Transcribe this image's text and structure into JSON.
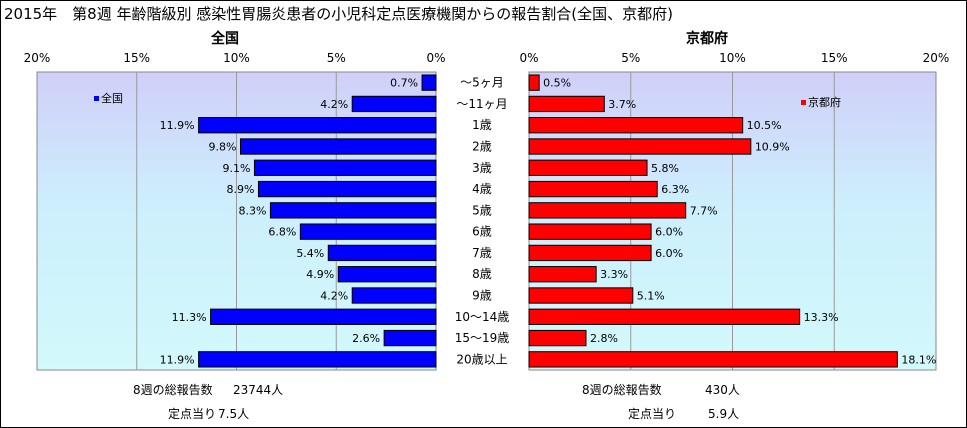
{
  "title": "2015年　第8週 年齢階級別 感染性胃腸炎患者の小児科定点医療機関からの報告割合(全国、京都府)",
  "age_groups": [
    "～5ヶ月",
    "～11ヶ月",
    "1歳",
    "2歳",
    "3歳",
    "4歳",
    "5歳",
    "6歳",
    "7歳",
    "8歳",
    "9歳",
    "10～14歳",
    "15～19歳",
    "20歳以上"
  ],
  "chart_data": [
    {
      "type": "bar",
      "title": "全国",
      "categories": [
        "～5ヶ月",
        "～11ヶ月",
        "1歳",
        "2歳",
        "3歳",
        "4歳",
        "5歳",
        "6歳",
        "7歳",
        "8歳",
        "9歳",
        "10～14歳",
        "15～19歳",
        "20歳以上"
      ],
      "series": [
        {
          "name": "全国",
          "values": [
            0.7,
            4.2,
            11.9,
            9.8,
            9.1,
            8.9,
            8.3,
            6.8,
            5.4,
            4.9,
            4.2,
            11.3,
            2.6,
            11.9
          ]
        }
      ],
      "value_labels": [
        "0.7%",
        "4.2%",
        "11.9%",
        "9.8%",
        "9.1%",
        "8.9%",
        "8.3%",
        "6.8%",
        "5.4%",
        "4.9%",
        "4.2%",
        "11.3%",
        "2.6%",
        "11.9%"
      ],
      "xlim": [
        0,
        20
      ],
      "ticks": [
        "20%",
        "15%",
        "10%",
        "5%",
        "0%"
      ],
      "orientation": "horizontal-reversed",
      "legend": "top-left",
      "color": "#0000ff",
      "grid": true
    },
    {
      "type": "bar",
      "title": "京都府",
      "categories": [
        "～5ヶ月",
        "～11ヶ月",
        "1歳",
        "2歳",
        "3歳",
        "4歳",
        "5歳",
        "6歳",
        "7歳",
        "8歳",
        "9歳",
        "10～14歳",
        "15～19歳",
        "20歳以上"
      ],
      "series": [
        {
          "name": "京都府",
          "values": [
            0.5,
            3.7,
            10.5,
            10.9,
            5.8,
            6.3,
            7.7,
            6.0,
            6.0,
            3.3,
            5.1,
            13.3,
            2.8,
            18.1
          ]
        }
      ],
      "value_labels": [
        "0.5%",
        "3.7%",
        "10.5%",
        "10.9%",
        "5.8%",
        "6.3%",
        "7.7%",
        "6.0%",
        "6.0%",
        "3.3%",
        "5.1%",
        "13.3%",
        "2.8%",
        "18.1%"
      ],
      "xlim": [
        0,
        20
      ],
      "ticks": [
        "0%",
        "5%",
        "10%",
        "15%",
        "20%"
      ],
      "orientation": "horizontal",
      "legend": "top-right",
      "color": "#ff0000",
      "grid": true
    }
  ],
  "footer": {
    "left": {
      "total_label": "8週の総報告数",
      "total_value": "23744人",
      "per_label": "定点当り",
      "per_value": "7.5人"
    },
    "right": {
      "total_label": "8週の総報告数",
      "total_value": "430人",
      "per_label": "定点当り",
      "per_value": "5.9人"
    }
  }
}
